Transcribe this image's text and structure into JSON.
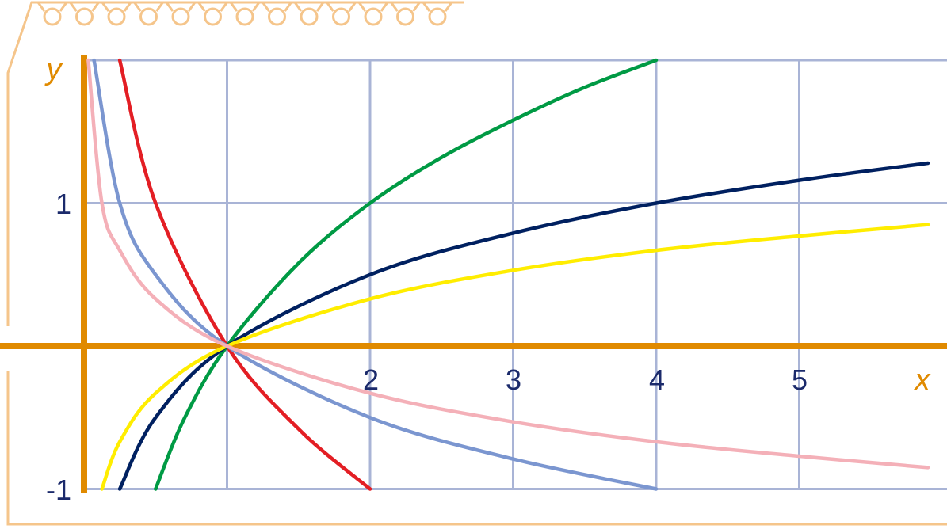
{
  "chart_data": {
    "type": "line",
    "title": "",
    "xlabel": "x",
    "ylabel": "y",
    "xlim": [
      -1,
      5.5
    ],
    "ylim": [
      -1,
      2
    ],
    "grid": true,
    "x_ticks": [
      "2",
      "3",
      "4",
      "5"
    ],
    "y_ticks": [
      "1",
      "-1"
    ],
    "series": [
      {
        "color": "#009a44",
        "x": [
          0.5,
          0.7,
          1,
          1.5,
          2,
          2.5,
          3,
          3.5,
          4
        ],
        "y": [
          -1,
          -0.51,
          0,
          0.58,
          1,
          1.32,
          1.58,
          1.81,
          2
        ]
      },
      {
        "color": "#002060",
        "x": [
          0.25,
          0.5,
          1,
          2,
          3,
          4,
          5,
          5.9
        ],
        "y": [
          -1,
          -0.5,
          0,
          0.5,
          0.79,
          1,
          1.16,
          1.28
        ]
      },
      {
        "color": "#ffed00",
        "x": [
          0.125,
          0.25,
          0.5,
          1,
          2,
          3,
          4,
          5,
          5.9
        ],
        "y": [
          -1,
          -0.67,
          -0.33,
          0,
          0.33,
          0.53,
          0.67,
          0.77,
          0.85
        ]
      },
      {
        "color": "#e31e24",
        "x": [
          0.25,
          0.5,
          1,
          1.5,
          2
        ],
        "y": [
          2,
          1,
          0,
          -0.58,
          -1
        ]
      },
      {
        "color": "#7b96d0",
        "x": [
          0.07,
          0.25,
          0.5,
          1,
          2,
          3,
          4
        ],
        "y": [
          2,
          1,
          0.5,
          0,
          -0.5,
          -0.79,
          -1
        ]
      },
      {
        "color": "#f4b0b8",
        "x": [
          0.03,
          0.125,
          0.25,
          0.5,
          1,
          2,
          3,
          4,
          5,
          5.9
        ],
        "y": [
          2,
          1,
          0.67,
          0.33,
          0,
          -0.33,
          -0.53,
          -0.67,
          -0.77,
          -0.85
        ]
      }
    ]
  },
  "colors": {
    "grid": "#a9b4d6",
    "axis": "#e08a00",
    "border": "#f5c58b"
  }
}
